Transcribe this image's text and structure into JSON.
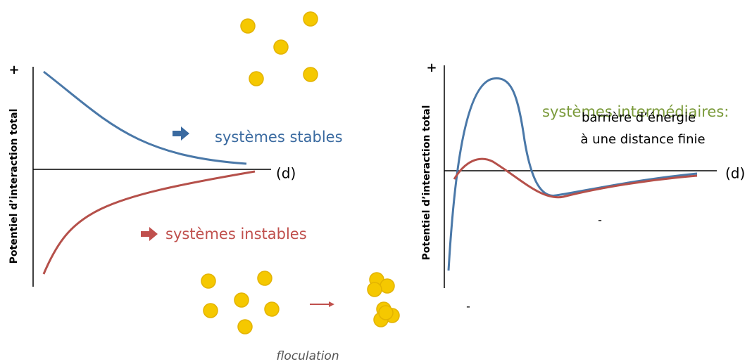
{
  "left": {
    "y_label": "Potentiel d’interaction total",
    "plus": "+",
    "x_label": "(d)",
    "stable": "systèmes stables",
    "unstable": "systèmes instables",
    "caption": "floculation"
  },
  "right": {
    "y_label": "Potentiel d’interaction total",
    "plus": "+",
    "x_label": "(d)",
    "title": "systèmes intermédiaires:",
    "line1": "barrière d’énergie",
    "line2": "à une distance finie",
    "minus_labels": [
      "-",
      "-"
    ]
  }
}
